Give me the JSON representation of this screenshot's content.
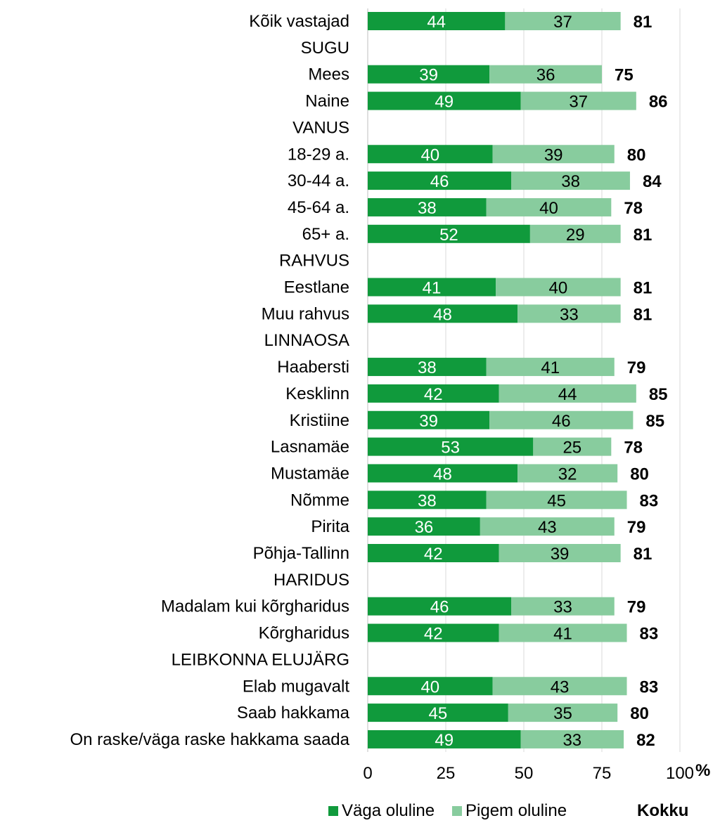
{
  "chart_data": {
    "type": "bar",
    "orientation": "horizontal",
    "stacked": true,
    "categories": [
      "Kõik vastajad",
      "SUGU",
      "Mees",
      "Naine",
      "VANUS",
      "18-29 a.",
      "30-44 a.",
      "45-64 a.",
      "65+ a.",
      "RAHVUS",
      "Eestlane",
      "Muu rahvus",
      "LINNAOSA",
      "Haabersti",
      "Kesklinn",
      "Kristiine",
      "Lasnamäe",
      "Mustamäe",
      "Nõmme",
      "Pirita",
      "Põhja-Tallinn",
      "HARIDUS",
      "Madalam kui kõrgharidus",
      "Kõrgharidus",
      "LEIBKONNA ELUJÄRG",
      "Elab mugavalt",
      "Saab hakkama",
      "On raske/väga raske hakkama saada"
    ],
    "series": [
      {
        "name": "Väga oluline",
        "color": "#109a3c",
        "label_color": "#ffffff",
        "values": [
          44,
          null,
          39,
          49,
          null,
          40,
          46,
          38,
          52,
          null,
          41,
          48,
          null,
          38,
          42,
          39,
          53,
          48,
          38,
          36,
          42,
          null,
          46,
          42,
          null,
          40,
          45,
          49
        ]
      },
      {
        "name": "Pigem oluline",
        "color": "#88cc9e",
        "label_color": "#000000",
        "values": [
          37,
          null,
          36,
          37,
          null,
          39,
          38,
          40,
          29,
          null,
          40,
          33,
          null,
          41,
          44,
          46,
          25,
          32,
          45,
          43,
          39,
          null,
          33,
          41,
          null,
          43,
          35,
          33
        ]
      }
    ],
    "totals": {
      "name": "Kokku",
      "values": [
        81,
        null,
        75,
        86,
        null,
        80,
        84,
        78,
        81,
        null,
        81,
        81,
        null,
        79,
        85,
        85,
        78,
        80,
        83,
        79,
        81,
        null,
        79,
        83,
        null,
        83,
        80,
        82
      ]
    },
    "xlim": [
      0,
      100
    ],
    "xticks": [
      0,
      25,
      50,
      75,
      100
    ],
    "xunit": "%",
    "grid": true,
    "legend_position": "bottom-right"
  }
}
